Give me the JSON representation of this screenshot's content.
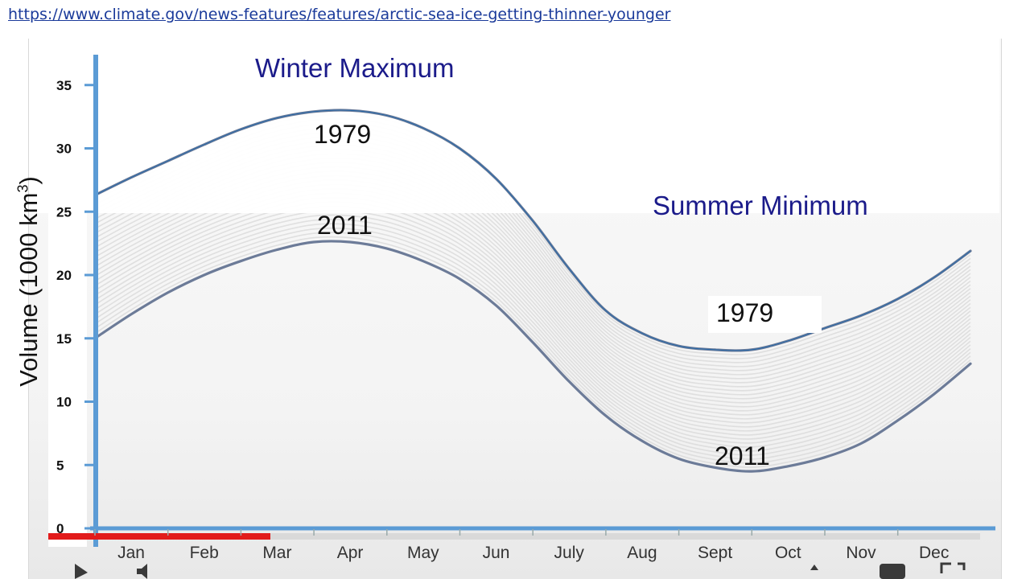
{
  "source_url": "https://www.climate.gov/news-features/features/arctic-sea-ice-getting-thinner-younger",
  "colors": {
    "axis": "#5b9bd5",
    "series_line": "#6c7b98",
    "background_lines": "#d6d6d6",
    "annotation_blue": "#1b1b8a",
    "progress_red": "#e21b1b"
  },
  "annotations": {
    "winter_max": "Winter Maximum",
    "summer_min": "Summer Minimum",
    "label_1979_winter": "1979",
    "label_2011_winter": "2011",
    "label_1979_summer": "1979",
    "label_2011_summer": "2011"
  },
  "chart_data": {
    "type": "line",
    "title": "",
    "ylabel_text": "Volume (1000 km",
    "ylabel_sup": "3",
    "ylabel_close": ")",
    "xlabel": "",
    "ylim": [
      0,
      37
    ],
    "yticks": [
      0,
      5,
      10,
      15,
      20,
      25,
      30,
      35
    ],
    "ytick_labels": [
      "0",
      "5",
      "10",
      "15",
      "20",
      "25",
      "30",
      "35"
    ],
    "categories": [
      "Jan",
      "Feb",
      "Mar",
      "Apr",
      "May",
      "Jun",
      "July",
      "Aug",
      "Sept",
      "Oct",
      "Nov",
      "Dec"
    ],
    "grid": false,
    "legend": "none",
    "series": [
      {
        "name": "1979",
        "x": [
          0,
          0.5,
          1,
          1.5,
          2,
          2.5,
          3,
          3.5,
          4,
          4.5,
          5,
          5.5,
          6,
          6.5,
          7,
          7.5,
          8,
          8.5,
          9,
          9.5,
          10,
          10.5,
          11,
          11.5,
          12
        ],
        "values": [
          26.3,
          27.7,
          29.0,
          30.3,
          31.5,
          32.4,
          32.9,
          33.0,
          32.6,
          31.6,
          30.0,
          27.6,
          24.3,
          20.5,
          17.2,
          15.4,
          14.4,
          14.1,
          14.1,
          14.8,
          15.8,
          16.8,
          18.1,
          19.8,
          21.9
        ]
      },
      {
        "name": "2011",
        "x": [
          0,
          0.5,
          1,
          1.5,
          2,
          2.5,
          3,
          3.5,
          4,
          4.5,
          5,
          5.5,
          6,
          6.5,
          7,
          7.5,
          8,
          8.5,
          9,
          9.5,
          10,
          10.5,
          11,
          11.5,
          12
        ],
        "values": [
          15.0,
          16.9,
          18.6,
          20.0,
          21.1,
          22.0,
          22.6,
          22.6,
          22.1,
          21.1,
          19.7,
          17.6,
          14.7,
          11.6,
          8.9,
          6.9,
          5.5,
          4.8,
          4.5,
          4.9,
          5.6,
          6.7,
          8.5,
          10.6,
          13.0
        ]
      }
    ]
  }
}
